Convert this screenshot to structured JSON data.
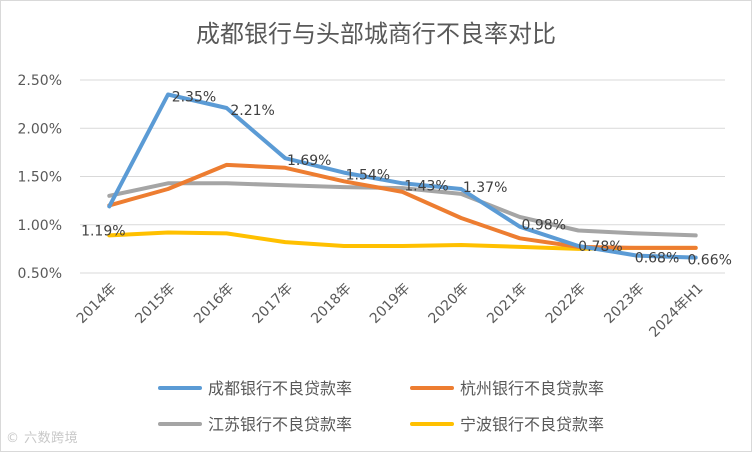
{
  "chart_data": {
    "type": "line",
    "title": "成都银行与头部城商行不良率对比",
    "categories": [
      "2014年",
      "2015年",
      "2016年",
      "2017年",
      "2018年",
      "2019年",
      "2020年",
      "2021年",
      "2022年",
      "2023年",
      "2024年H1"
    ],
    "y_ticks": [
      "0.50%",
      "1.00%",
      "1.50%",
      "2.00%",
      "2.50%"
    ],
    "ylim": [
      0.5,
      2.5
    ],
    "grid": true,
    "legend_position": "bottom",
    "series": [
      {
        "name": "成都银行不良贷款率",
        "color": "#5b9bd5",
        "values": [
          1.19,
          2.35,
          2.21,
          1.69,
          1.54,
          1.43,
          1.37,
          0.98,
          0.78,
          0.68,
          0.66
        ],
        "labels": [
          "1.19%",
          "2.35%",
          "2.21%",
          "1.69%",
          "1.54%",
          "1.43%",
          "1.37%",
          "0.98%",
          "0.78%",
          "0.68%",
          "0.66%"
        ]
      },
      {
        "name": "杭州银行不良贷款率",
        "color": "#ed7d31",
        "values": [
          1.2,
          1.37,
          1.62,
          1.59,
          1.45,
          1.34,
          1.07,
          0.86,
          0.77,
          0.76,
          0.76
        ]
      },
      {
        "name": "江苏银行不良贷款率",
        "color": "#a5a5a5",
        "values": [
          1.3,
          1.43,
          1.43,
          1.41,
          1.39,
          1.38,
          1.32,
          1.08,
          0.94,
          0.91,
          0.89
        ]
      },
      {
        "name": "宁波银行不良贷款率",
        "color": "#ffc000",
        "values": [
          0.89,
          0.92,
          0.91,
          0.82,
          0.78,
          0.78,
          0.79,
          0.77,
          0.75,
          0.76,
          0.76
        ]
      }
    ]
  },
  "watermark": "© 六数跨境"
}
